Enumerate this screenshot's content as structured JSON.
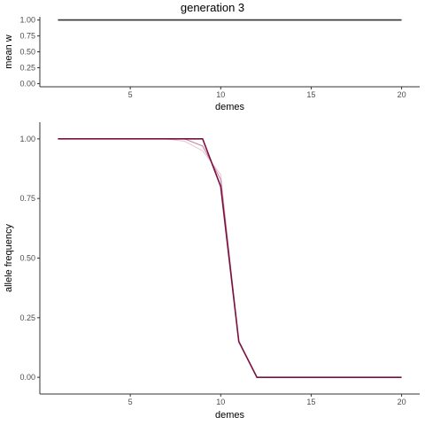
{
  "chart_data": [
    {
      "type": "line",
      "title": "generation 3",
      "xlabel": "demes",
      "ylabel": "mean w",
      "xlim": [
        0.0,
        21.0
      ],
      "ylim": [
        -0.05,
        1.05
      ],
      "xticks": [
        5,
        10,
        15,
        20
      ],
      "xtick_labels": [
        "5",
        "10",
        "15",
        "20"
      ],
      "yticks": [
        0,
        0.25,
        0.5,
        0.75,
        1
      ],
      "ytick_labels": [
        "0.00",
        "0.25",
        "0.50",
        "0.75",
        "1.00"
      ],
      "grid": false,
      "series": [
        {
          "color": "#333333",
          "x": [
            1,
            20
          ],
          "y": [
            1.0,
            1.0
          ]
        }
      ]
    },
    {
      "type": "line",
      "title": "",
      "xlabel": "demes",
      "ylabel": "allele frequency",
      "xlim": [
        0.0,
        21.0
      ],
      "ylim": [
        -0.07,
        1.07
      ],
      "xticks": [
        5,
        10,
        15,
        20
      ],
      "xtick_labels": [
        "5",
        "10",
        "15",
        "20"
      ],
      "yticks": [
        0,
        0.25,
        0.5,
        0.75,
        1
      ],
      "ytick_labels": [
        "0.00",
        "0.25",
        "0.50",
        "0.75",
        "1.00"
      ],
      "grid": false,
      "series": [
        {
          "color": "#e8c9d6",
          "x": [
            1,
            2,
            3,
            4,
            5,
            6,
            7,
            8,
            9,
            10,
            11,
            12,
            13,
            14,
            15,
            16,
            17,
            18,
            19,
            20
          ],
          "y": [
            1,
            1,
            1,
            1,
            1,
            1,
            1,
            0.99,
            0.95,
            0.85,
            0.15,
            0,
            0,
            0,
            0,
            0,
            0,
            0,
            0,
            0
          ]
        },
        {
          "color": "#c98aa6",
          "x": [
            1,
            2,
            3,
            4,
            5,
            6,
            7,
            8,
            9,
            10,
            11,
            12,
            13,
            14,
            15,
            16,
            17,
            18,
            19,
            20
          ],
          "y": [
            1,
            1,
            1,
            1,
            1,
            1,
            1,
            1,
            0.97,
            0.83,
            0.15,
            0,
            0,
            0,
            0,
            0,
            0,
            0,
            0,
            0
          ]
        },
        {
          "color": "#7a1042",
          "x": [
            1,
            2,
            3,
            4,
            5,
            6,
            7,
            8,
            9,
            10,
            11,
            12,
            13,
            14,
            15,
            16,
            17,
            18,
            19,
            20
          ],
          "y": [
            1,
            1,
            1,
            1,
            1,
            1,
            1,
            1,
            1,
            0.8,
            0.15,
            0,
            0,
            0,
            0,
            0,
            0,
            0,
            0,
            0
          ]
        }
      ]
    }
  ]
}
